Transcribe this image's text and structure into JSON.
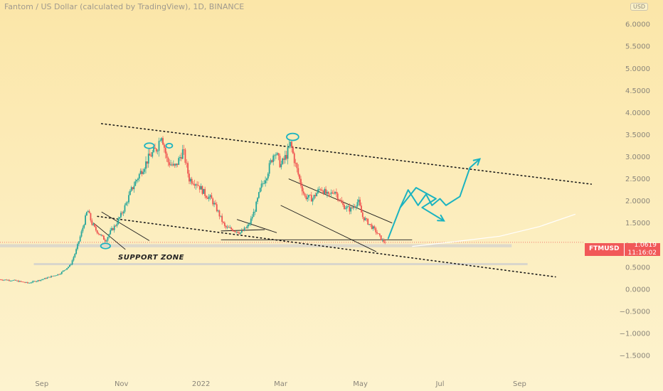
{
  "header": {
    "title": "Fantom / US Dollar (calculated by TradingView), 1D, BINANCE",
    "currency_badge": "USD"
  },
  "price_tag": {
    "symbol": "FTMUSD",
    "price": "1.0619",
    "countdown": "11:16:02"
  },
  "annotations": {
    "support_zone": "SUPPORT ZONE"
  },
  "colors": {
    "bg_top": "#fbe6a8",
    "bg_bottom": "#fdf3cf",
    "up": "#26a69a",
    "down": "#ef5350",
    "drawing": "#1bb3c0",
    "zone": "#d9d6cc"
  },
  "chart_data": {
    "type": "candlestick",
    "y_ticks": [
      "6.0000",
      "5.5000",
      "5.0000",
      "4.5000",
      "4.0000",
      "3.5000",
      "3.0000",
      "2.5000",
      "2.0000",
      "1.5000",
      "1.0000",
      "0.5000",
      "0.0000",
      "−0.5000",
      "−1.0000",
      "−1.5000"
    ],
    "y_tick_values": [
      6.0,
      5.5,
      5.0,
      4.5,
      4.0,
      3.5,
      3.0,
      2.5,
      2.0,
      1.5,
      1.0,
      0.5,
      0.0,
      -0.5,
      -1.0,
      -1.5
    ],
    "x_ticks": [
      "Sep",
      "Nov",
      "2022",
      "Mar",
      "May",
      "Jul",
      "Sep"
    ],
    "x_tick_months": [
      0,
      2,
      4,
      6,
      8,
      10,
      12
    ],
    "ylim": [
      -1.95,
      6.55
    ],
    "xlim": [
      -1.05,
      13.6
    ],
    "last_price": 1.0619,
    "price_path": [
      [
        -1.05,
        0.22
      ],
      [
        -0.7,
        0.2
      ],
      [
        -0.35,
        0.14
      ],
      [
        0.0,
        0.22
      ],
      [
        0.45,
        0.35
      ],
      [
        0.72,
        0.55
      ],
      [
        0.85,
        0.85
      ],
      [
        1.0,
        1.3
      ],
      [
        1.15,
        1.8
      ],
      [
        1.25,
        1.5
      ],
      [
        1.35,
        1.35
      ],
      [
        1.5,
        1.2
      ],
      [
        1.6,
        1.1
      ],
      [
        1.72,
        1.3
      ],
      [
        1.85,
        1.45
      ],
      [
        2.0,
        1.7
      ],
      [
        2.1,
        1.9
      ],
      [
        2.25,
        2.25
      ],
      [
        2.45,
        2.6
      ],
      [
        2.7,
        3.0
      ],
      [
        2.9,
        3.2
      ],
      [
        3.0,
        3.55
      ],
      [
        3.15,
        2.9
      ],
      [
        3.35,
        2.75
      ],
      [
        3.55,
        3.15
      ],
      [
        3.7,
        2.5
      ],
      [
        3.9,
        2.4
      ],
      [
        4.1,
        2.15
      ],
      [
        4.25,
        2.05
      ],
      [
        4.4,
        1.8
      ],
      [
        4.6,
        1.4
      ],
      [
        4.8,
        1.35
      ],
      [
        5.0,
        1.28
      ],
      [
        5.2,
        1.45
      ],
      [
        5.35,
        1.8
      ],
      [
        5.5,
        2.3
      ],
      [
        5.65,
        2.6
      ],
      [
        5.85,
        3.15
      ],
      [
        6.0,
        2.8
      ],
      [
        6.15,
        3.05
      ],
      [
        6.25,
        3.3
      ],
      [
        6.35,
        2.9
      ],
      [
        6.5,
        2.4
      ],
      [
        6.6,
        2.1
      ],
      [
        6.8,
        2.05
      ],
      [
        7.0,
        2.3
      ],
      [
        7.2,
        2.1
      ],
      [
        7.35,
        2.25
      ],
      [
        7.55,
        1.9
      ],
      [
        7.75,
        1.8
      ],
      [
        7.95,
        2.0
      ],
      [
        8.05,
        1.65
      ],
      [
        8.2,
        1.5
      ],
      [
        8.4,
        1.3
      ],
      [
        8.55,
        1.1
      ],
      [
        8.65,
        1.06
      ]
    ],
    "projection_path": [
      [
        9.3,
        0.97
      ],
      [
        10.4,
        1.08
      ],
      [
        11.5,
        1.2
      ],
      [
        12.5,
        1.42
      ],
      [
        13.4,
        1.7
      ]
    ],
    "levels": [
      {
        "kind": "support_zone",
        "from": 0.95,
        "to": 1.02,
        "x1": -1.05,
        "x2": 11.8
      },
      {
        "kind": "support_line",
        "value": 0.57,
        "x1": -0.2,
        "x2": 12.2
      }
    ],
    "trendlines": [
      {
        "style": "dotted",
        "p1": [
          1.5,
          3.75
        ],
        "p2": [
          13.8,
          2.38
        ]
      },
      {
        "style": "dotted",
        "p1": [
          1.4,
          1.65
        ],
        "p2": [
          12.9,
          0.28
        ]
      },
      {
        "style": "solid",
        "p1": [
          1.3,
          1.5
        ],
        "p2": [
          2.1,
          0.9
        ]
      },
      {
        "style": "solid",
        "p1": [
          1.5,
          1.75
        ],
        "p2": [
          2.7,
          1.1
        ]
      },
      {
        "style": "solid",
        "p1": [
          4.5,
          1.32
        ],
        "p2": [
          5.6,
          1.35
        ]
      },
      {
        "style": "solid",
        "p1": [
          4.9,
          1.58
        ],
        "p2": [
          5.9,
          1.28
        ]
      },
      {
        "style": "solid",
        "p1": [
          6.2,
          2.5
        ],
        "p2": [
          8.8,
          1.5
        ]
      },
      {
        "style": "solid",
        "p1": [
          6.0,
          1.9
        ],
        "p2": [
          8.4,
          0.85
        ]
      },
      {
        "style": "solid",
        "p1": [
          4.5,
          1.12
        ],
        "p2": [
          9.3,
          1.12
        ]
      }
    ],
    "drawings": [
      {
        "kind": "ellipse",
        "cx": 2.7,
        "cy": 3.25,
        "rx": 0.12,
        "ry": 0.06
      },
      {
        "kind": "ellipse",
        "cx": 3.2,
        "cy": 3.25,
        "rx": 0.08,
        "ry": 0.05
      },
      {
        "kind": "ellipse",
        "cx": 6.3,
        "cy": 3.45,
        "rx": 0.15,
        "ry": 0.08
      },
      {
        "kind": "ellipse",
        "cx": 1.6,
        "cy": 0.98,
        "rx": 0.12,
        "ry": 0.06
      },
      {
        "kind": "arrow_path",
        "points": [
          [
            8.7,
            1.15
          ],
          [
            9.0,
            1.85
          ],
          [
            9.4,
            2.3
          ],
          [
            9.9,
            2.05
          ],
          [
            9.55,
            1.85
          ],
          [
            10.1,
            1.55
          ]
        ]
      },
      {
        "kind": "arrow_path",
        "points": [
          [
            9.0,
            1.85
          ],
          [
            9.2,
            2.25
          ],
          [
            9.45,
            1.9
          ],
          [
            9.65,
            2.15
          ],
          [
            9.8,
            1.9
          ],
          [
            10.0,
            2.05
          ],
          [
            10.15,
            1.9
          ],
          [
            10.5,
            2.1
          ],
          [
            10.75,
            2.75
          ],
          [
            11.0,
            2.95
          ]
        ]
      }
    ]
  }
}
